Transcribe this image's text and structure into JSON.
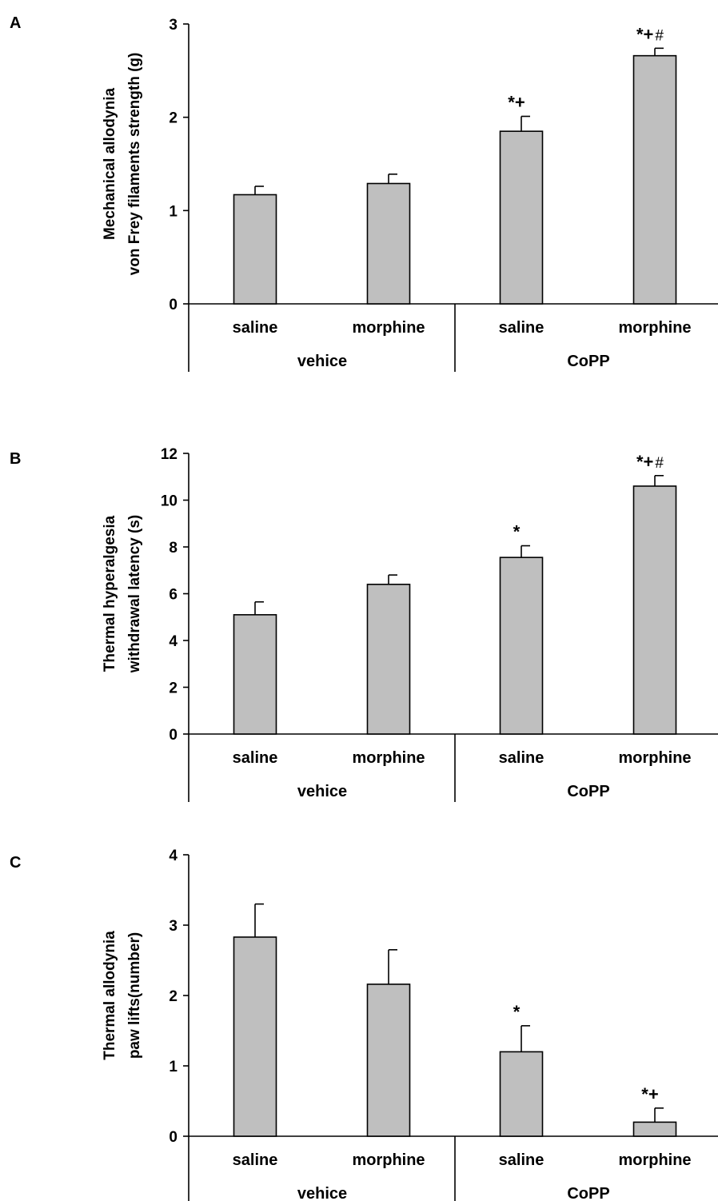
{
  "chart_data": [
    {
      "type": "bar",
      "panel_label": "A",
      "ylabel_lines": [
        "Mechanical allodynia",
        "von Frey filaments strength (g)"
      ],
      "categories": [
        "saline",
        "morphine",
        "saline",
        "morphine"
      ],
      "groups": [
        {
          "label": "vehice",
          "categories": [
            0,
            1
          ]
        },
        {
          "label": "CoPP",
          "categories": [
            2,
            3
          ]
        }
      ],
      "values": [
        1.17,
        1.29,
        1.85,
        2.66
      ],
      "errors": [
        0.09,
        0.1,
        0.16,
        0.08
      ],
      "significance": [
        {
          "stars": "",
          "hash": ""
        },
        {
          "stars": "",
          "hash": ""
        },
        {
          "stars": "*+",
          "hash": ""
        },
        {
          "stars": "*+",
          "hash": "#"
        }
      ],
      "yticks": [
        "0",
        "1",
        "2",
        "3"
      ],
      "ylim": [
        0,
        3
      ],
      "grid": false
    },
    {
      "type": "bar",
      "panel_label": "B",
      "ylabel_lines": [
        "Thermal hyperalgesia",
        "withdrawal latency (s)"
      ],
      "categories": [
        "saline",
        "morphine",
        "saline",
        "morphine"
      ],
      "groups": [
        {
          "label": "vehice",
          "categories": [
            0,
            1
          ]
        },
        {
          "label": "CoPP",
          "categories": [
            2,
            3
          ]
        }
      ],
      "values": [
        5.1,
        6.4,
        7.55,
        10.6
      ],
      "errors": [
        0.55,
        0.4,
        0.5,
        0.45
      ],
      "significance": [
        {
          "stars": "",
          "hash": ""
        },
        {
          "stars": "",
          "hash": ""
        },
        {
          "stars": "*",
          "hash": ""
        },
        {
          "stars": "*+",
          "hash": "#"
        }
      ],
      "yticks": [
        "0",
        "2",
        "4",
        "6",
        "8",
        "10",
        "12"
      ],
      "ylim": [
        0,
        12
      ],
      "grid": false
    },
    {
      "type": "bar",
      "panel_label": "C",
      "ylabel_lines": [
        "Thermal allodynia",
        "paw lifts(number)"
      ],
      "categories": [
        "saline",
        "morphine",
        "saline",
        "morphine"
      ],
      "groups": [
        {
          "label": "vehice",
          "categories": [
            0,
            1
          ]
        },
        {
          "label": "CoPP",
          "categories": [
            2,
            3
          ]
        }
      ],
      "values": [
        2.83,
        2.16,
        1.2,
        0.2
      ],
      "errors": [
        0.47,
        0.49,
        0.37,
        0.2
      ],
      "significance": [
        {
          "stars": "",
          "hash": ""
        },
        {
          "stars": "",
          "hash": ""
        },
        {
          "stars": "*",
          "hash": ""
        },
        {
          "stars": "*+",
          "hash": ""
        }
      ],
      "yticks": [
        "0",
        "1",
        "2",
        "3",
        "4"
      ],
      "ylim": [
        0,
        4
      ],
      "grid": false
    }
  ]
}
